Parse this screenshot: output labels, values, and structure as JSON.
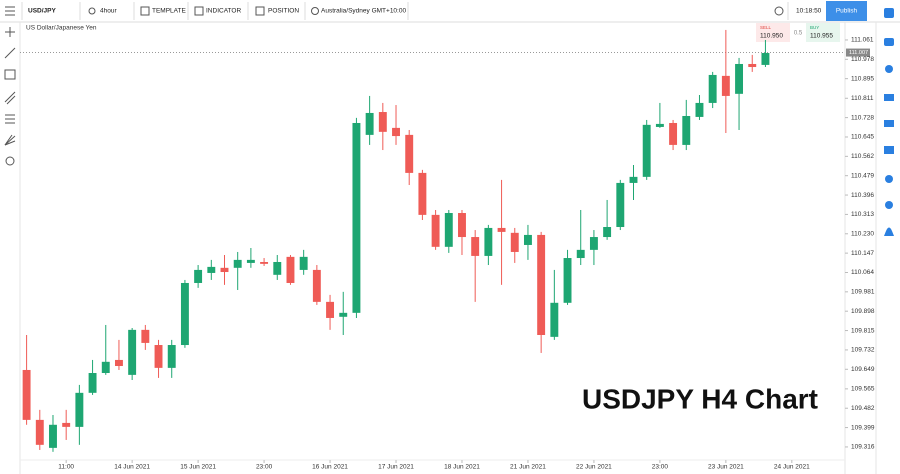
{
  "ui": {
    "symbol": "USD/JPY",
    "interval": "4hour",
    "template": "TEMPLATE",
    "indicator": "INDICATOR",
    "position": "POSITION",
    "timezone": "Australia/Sydney GMT+10:00",
    "clock": "10:18:50",
    "publish": "Publish",
    "sell_label": "SELL",
    "sell_price": "110.950",
    "spread": "0.5",
    "buy_label": "BUY",
    "buy_price": "110.955"
  },
  "chart_data": {
    "type": "candlestick",
    "title": "US Dollar/Japanese Yen",
    "annotation": "USDJPY H4 Chart",
    "up_color": "#1ea672",
    "down_color": "#ef5b56",
    "grid": false,
    "last_price": 111.007,
    "open": [
      109.646,
      109.432,
      109.312,
      109.419,
      109.402,
      109.548,
      109.633,
      109.689,
      109.625,
      109.818,
      109.753,
      109.655,
      109.753,
      110.019,
      110.062,
      110.084,
      110.084,
      110.105,
      110.109,
      110.054,
      110.131,
      110.075,
      110.075,
      109.938,
      109.874,
      109.891,
      110.654,
      110.752,
      110.684,
      110.654,
      110.491,
      110.311,
      110.174,
      110.319,
      110.216,
      110.135,
      110.255,
      110.234,
      110.182,
      110.225,
      109.788,
      109.934,
      110.126,
      110.161,
      110.216,
      110.259,
      110.448,
      110.474,
      110.688,
      110.705,
      110.611,
      110.731,
      110.791,
      110.907,
      110.83,
      110.958,
      110.954
    ],
    "high": [
      109.796,
      109.475,
      109.453,
      109.475,
      109.582,
      109.689,
      109.839,
      109.775,
      109.826,
      109.839,
      109.775,
      109.775,
      110.032,
      110.096,
      110.118,
      110.139,
      110.152,
      110.169,
      110.126,
      110.139,
      110.139,
      110.161,
      110.096,
      109.968,
      109.981,
      110.727,
      110.821,
      110.791,
      110.782,
      110.675,
      110.504,
      110.332,
      110.332,
      110.332,
      110.246,
      110.268,
      110.461,
      110.255,
      110.268,
      110.238,
      110.075,
      110.161,
      110.332,
      110.246,
      110.375,
      110.461,
      110.525,
      110.718,
      110.791,
      110.718,
      110.804,
      110.825,
      110.924,
      111.104,
      110.984,
      110.997,
      111.061
    ],
    "low": [
      109.411,
      109.303,
      109.295,
      109.346,
      109.325,
      109.539,
      109.625,
      109.646,
      109.603,
      109.732,
      109.612,
      109.612,
      109.741,
      109.998,
      110.032,
      110.011,
      109.989,
      110.084,
      110.092,
      110.032,
      110.011,
      110.054,
      109.925,
      109.818,
      109.796,
      109.869,
      110.611,
      110.589,
      110.611,
      110.439,
      110.289,
      110.161,
      110.148,
      110.139,
      109.938,
      110.096,
      110.011,
      110.105,
      110.118,
      109.719,
      109.775,
      109.925,
      110.096,
      110.096,
      110.204,
      110.246,
      110.375,
      110.461,
      110.684,
      110.589,
      110.589,
      110.718,
      110.769,
      110.662,
      110.675,
      110.924,
      110.945
    ],
    "close": [
      109.432,
      109.325,
      109.411,
      109.402,
      109.548,
      109.633,
      109.681,
      109.663,
      109.818,
      109.762,
      109.655,
      109.753,
      110.019,
      110.075,
      110.088,
      110.066,
      110.118,
      110.118,
      110.101,
      110.109,
      110.019,
      110.131,
      109.938,
      109.869,
      109.891,
      110.705,
      110.748,
      110.667,
      110.649,
      110.491,
      110.311,
      110.174,
      110.319,
      110.216,
      110.135,
      110.255,
      110.238,
      110.152,
      110.225,
      109.796,
      109.934,
      110.126,
      110.161,
      110.216,
      110.259,
      110.448,
      110.474,
      110.697,
      110.701,
      110.611,
      110.735,
      110.791,
      110.911,
      110.821,
      110.958,
      110.945,
      111.005
    ],
    "xlim": [
      -0.5,
      61.5
    ],
    "xticks": [
      {
        "value": 3,
        "label": "11:00"
      },
      {
        "value": 8,
        "label": "14 Jun 2021"
      },
      {
        "value": 13,
        "label": "15 Jun 2021"
      },
      {
        "value": 18,
        "label": "23:00"
      },
      {
        "value": 23,
        "label": "16 Jun 2021"
      },
      {
        "value": 28,
        "label": "17 Jun 2021"
      },
      {
        "value": 33,
        "label": "18 Jun 2021"
      },
      {
        "value": 38,
        "label": "21 Jun 2021"
      },
      {
        "value": 43,
        "label": "22 Jun 2021"
      },
      {
        "value": 48,
        "label": "23:00"
      },
      {
        "value": 53,
        "label": "23 Jun 2021"
      },
      {
        "value": 58,
        "label": "24 Jun 2021"
      }
    ],
    "ylim": [
      109.26,
      111.138
    ],
    "yticks": [
      111.061,
      110.978,
      110.895,
      110.811,
      110.728,
      110.645,
      110.562,
      110.479,
      110.396,
      110.313,
      {
        "value": 110.23,
        "label": "110.230"
      },
      110.147,
      110.064,
      109.981,
      109.898,
      109.815,
      109.732,
      109.649,
      109.565,
      109.482,
      109.399,
      109.316
    ]
  }
}
